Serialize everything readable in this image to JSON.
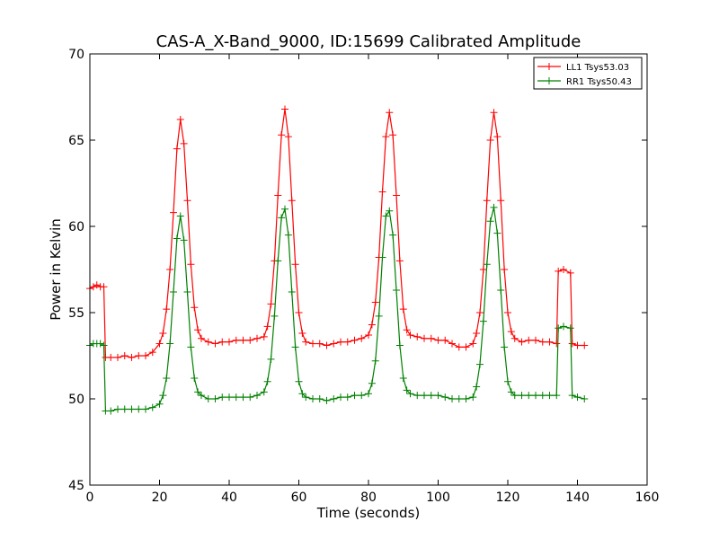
{
  "chart_data": {
    "type": "line",
    "title": "CAS-A_X-Band_9000, ID:15699 Calibrated Amplitude",
    "xlabel": "Time (seconds)",
    "ylabel": "Power in Kelvin",
    "xlim": [
      0,
      160
    ],
    "ylim": [
      45,
      70
    ],
    "xticks": [
      0,
      20,
      40,
      60,
      80,
      100,
      120,
      140,
      160
    ],
    "yticks": [
      45,
      50,
      55,
      60,
      65,
      70
    ],
    "grid": false,
    "legend_position": "top-right",
    "series": [
      {
        "name": "LL1 Tsys53.03",
        "color": "#ff0000",
        "marker": "plus",
        "points": [
          [
            0,
            56.4
          ],
          [
            1,
            56.5
          ],
          [
            2,
            56.6
          ],
          [
            3,
            56.5
          ],
          [
            4,
            56.5
          ],
          [
            4.5,
            52.4
          ],
          [
            6,
            52.4
          ],
          [
            8,
            52.4
          ],
          [
            10,
            52.5
          ],
          [
            12,
            52.4
          ],
          [
            14,
            52.5
          ],
          [
            16,
            52.5
          ],
          [
            18,
            52.7
          ],
          [
            20,
            53.2
          ],
          [
            21,
            53.8
          ],
          [
            22,
            55.2
          ],
          [
            23,
            57.5
          ],
          [
            24,
            60.8
          ],
          [
            25,
            64.5
          ],
          [
            26,
            66.2
          ],
          [
            27,
            64.8
          ],
          [
            28,
            61.5
          ],
          [
            29,
            57.8
          ],
          [
            30,
            55.3
          ],
          [
            31,
            54.0
          ],
          [
            32,
            53.5
          ],
          [
            34,
            53.3
          ],
          [
            36,
            53.2
          ],
          [
            38,
            53.3
          ],
          [
            40,
            53.3
          ],
          [
            42,
            53.4
          ],
          [
            44,
            53.4
          ],
          [
            46,
            53.4
          ],
          [
            48,
            53.5
          ],
          [
            50,
            53.6
          ],
          [
            51,
            54.2
          ],
          [
            52,
            55.5
          ],
          [
            53,
            58.0
          ],
          [
            54,
            61.8
          ],
          [
            55,
            65.3
          ],
          [
            56,
            66.8
          ],
          [
            57,
            65.2
          ],
          [
            58,
            61.5
          ],
          [
            59,
            57.8
          ],
          [
            60,
            55.0
          ],
          [
            61,
            53.8
          ],
          [
            62,
            53.3
          ],
          [
            64,
            53.2
          ],
          [
            66,
            53.2
          ],
          [
            68,
            53.1
          ],
          [
            70,
            53.2
          ],
          [
            72,
            53.3
          ],
          [
            74,
            53.3
          ],
          [
            76,
            53.4
          ],
          [
            78,
            53.5
          ],
          [
            80,
            53.7
          ],
          [
            81,
            54.3
          ],
          [
            82,
            55.6
          ],
          [
            83,
            58.2
          ],
          [
            84,
            62.0
          ],
          [
            85,
            65.2
          ],
          [
            86,
            66.6
          ],
          [
            87,
            65.3
          ],
          [
            88,
            61.8
          ],
          [
            89,
            58.0
          ],
          [
            90,
            55.2
          ],
          [
            91,
            54.0
          ],
          [
            92,
            53.7
          ],
          [
            94,
            53.6
          ],
          [
            96,
            53.5
          ],
          [
            98,
            53.5
          ],
          [
            100,
            53.4
          ],
          [
            102,
            53.4
          ],
          [
            104,
            53.2
          ],
          [
            106,
            53.0
          ],
          [
            108,
            53.0
          ],
          [
            110,
            53.2
          ],
          [
            111,
            53.8
          ],
          [
            112,
            55.0
          ],
          [
            113,
            57.5
          ],
          [
            114,
            61.5
          ],
          [
            115,
            65.0
          ],
          [
            116,
            66.6
          ],
          [
            117,
            65.2
          ],
          [
            118,
            61.5
          ],
          [
            119,
            57.5
          ],
          [
            120,
            55.0
          ],
          [
            121,
            53.9
          ],
          [
            122,
            53.5
          ],
          [
            124,
            53.3
          ],
          [
            126,
            53.4
          ],
          [
            128,
            53.4
          ],
          [
            130,
            53.3
          ],
          [
            132,
            53.3
          ],
          [
            134,
            53.2
          ],
          [
            134.5,
            57.4
          ],
          [
            136,
            57.5
          ],
          [
            138,
            57.3
          ],
          [
            138.5,
            53.2
          ],
          [
            140,
            53.1
          ],
          [
            142,
            53.1
          ]
        ]
      },
      {
        "name": "RR1 Tsys50.43",
        "color": "#008000",
        "marker": "plus",
        "points": [
          [
            0,
            53.1
          ],
          [
            1,
            53.2
          ],
          [
            2,
            53.2
          ],
          [
            3,
            53.2
          ],
          [
            4,
            53.1
          ],
          [
            4.5,
            49.3
          ],
          [
            6,
            49.3
          ],
          [
            8,
            49.4
          ],
          [
            10,
            49.4
          ],
          [
            12,
            49.4
          ],
          [
            14,
            49.4
          ],
          [
            16,
            49.4
          ],
          [
            18,
            49.5
          ],
          [
            20,
            49.7
          ],
          [
            21,
            50.2
          ],
          [
            22,
            51.2
          ],
          [
            23,
            53.2
          ],
          [
            24,
            56.2
          ],
          [
            25,
            59.3
          ],
          [
            26,
            60.6
          ],
          [
            27,
            59.2
          ],
          [
            28,
            56.2
          ],
          [
            29,
            53.0
          ],
          [
            30,
            51.2
          ],
          [
            31,
            50.4
          ],
          [
            32,
            50.2
          ],
          [
            34,
            50.0
          ],
          [
            36,
            50.0
          ],
          [
            38,
            50.1
          ],
          [
            40,
            50.1
          ],
          [
            42,
            50.1
          ],
          [
            44,
            50.1
          ],
          [
            46,
            50.1
          ],
          [
            48,
            50.2
          ],
          [
            50,
            50.4
          ],
          [
            51,
            51.0
          ],
          [
            52,
            52.3
          ],
          [
            53,
            54.8
          ],
          [
            54,
            58.0
          ],
          [
            55,
            60.5
          ],
          [
            56,
            61.0
          ],
          [
            57,
            59.5
          ],
          [
            58,
            56.2
          ],
          [
            59,
            53.0
          ],
          [
            60,
            51.0
          ],
          [
            61,
            50.3
          ],
          [
            62,
            50.1
          ],
          [
            64,
            50.0
          ],
          [
            66,
            50.0
          ],
          [
            68,
            49.9
          ],
          [
            70,
            50.0
          ],
          [
            72,
            50.1
          ],
          [
            74,
            50.1
          ],
          [
            76,
            50.2
          ],
          [
            78,
            50.2
          ],
          [
            80,
            50.3
          ],
          [
            81,
            50.9
          ],
          [
            82,
            52.2
          ],
          [
            83,
            54.8
          ],
          [
            84,
            58.2
          ],
          [
            85,
            60.6
          ],
          [
            86,
            60.9
          ],
          [
            87,
            59.5
          ],
          [
            88,
            56.3
          ],
          [
            89,
            53.1
          ],
          [
            90,
            51.2
          ],
          [
            91,
            50.5
          ],
          [
            92,
            50.3
          ],
          [
            94,
            50.2
          ],
          [
            96,
            50.2
          ],
          [
            98,
            50.2
          ],
          [
            100,
            50.2
          ],
          [
            102,
            50.1
          ],
          [
            104,
            50.0
          ],
          [
            106,
            50.0
          ],
          [
            108,
            50.0
          ],
          [
            110,
            50.1
          ],
          [
            111,
            50.7
          ],
          [
            112,
            52.0
          ],
          [
            113,
            54.5
          ],
          [
            114,
            57.8
          ],
          [
            115,
            60.3
          ],
          [
            116,
            61.1
          ],
          [
            117,
            59.6
          ],
          [
            118,
            56.3
          ],
          [
            119,
            53.0
          ],
          [
            120,
            51.0
          ],
          [
            121,
            50.4
          ],
          [
            122,
            50.2
          ],
          [
            124,
            50.2
          ],
          [
            126,
            50.2
          ],
          [
            128,
            50.2
          ],
          [
            130,
            50.2
          ],
          [
            132,
            50.2
          ],
          [
            134,
            50.2
          ],
          [
            134.5,
            54.1
          ],
          [
            136,
            54.2
          ],
          [
            138,
            54.1
          ],
          [
            138.5,
            50.2
          ],
          [
            140,
            50.1
          ],
          [
            142,
            50.0
          ]
        ]
      }
    ]
  }
}
